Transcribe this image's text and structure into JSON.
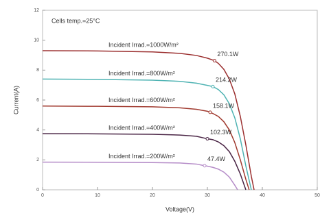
{
  "chart_data": {
    "type": "line",
    "annotation": "Cells temp.=25°C",
    "x_label": "Voltage(V)",
    "y_label": "Current(A)",
    "xlim": [
      0,
      50
    ],
    "ylim": [
      0,
      12
    ],
    "xticks": [
      0,
      10,
      20,
      30,
      40,
      50
    ],
    "yticks": [
      0,
      2,
      4,
      6,
      8,
      10,
      12
    ],
    "series": [
      {
        "name": "Incident Irrad.=1000W/m²",
        "color": "#9b2f2f",
        "x": [
          0,
          10,
          20,
          25,
          28,
          30,
          31.3,
          32,
          33,
          34,
          35,
          36,
          37,
          38,
          38.5
        ],
        "values": [
          9.3,
          9.28,
          9.22,
          9.12,
          8.98,
          8.8,
          8.63,
          8.45,
          8.05,
          7.4,
          6.4,
          4.9,
          3.0,
          0.9,
          0
        ],
        "mpp_x": 31.3,
        "mpp_y": 8.63,
        "power_label": "270.1W"
      },
      {
        "name": "Incident Irrad.=800W/m²",
        "color": "#4fb3b3",
        "x": [
          0,
          10,
          20,
          25,
          28,
          30,
          31,
          32,
          33,
          34,
          35,
          36,
          37,
          38
        ],
        "values": [
          7.4,
          7.38,
          7.33,
          7.25,
          7.13,
          6.98,
          6.9,
          6.7,
          6.35,
          5.75,
          4.8,
          3.4,
          1.6,
          0
        ],
        "mpp_x": 31,
        "mpp_y": 6.9,
        "power_label": "214.2W"
      },
      {
        "name": "Incident Irrad.=600W/m²",
        "color": "#a0392e",
        "x": [
          0,
          10,
          20,
          25,
          28,
          30,
          30.5,
          31,
          32,
          33,
          34,
          35,
          36,
          37,
          37.6
        ],
        "values": [
          5.6,
          5.58,
          5.55,
          5.48,
          5.38,
          5.25,
          5.18,
          5.1,
          4.9,
          4.55,
          4.0,
          3.15,
          2.0,
          0.7,
          0
        ],
        "mpp_x": 30.5,
        "mpp_y": 5.18,
        "power_label": "158.1W"
      },
      {
        "name": "Incident Irrad.=400W/m²",
        "color": "#4a2545",
        "x": [
          0,
          10,
          20,
          25,
          28,
          30,
          31,
          32,
          33,
          34,
          35,
          36,
          37
        ],
        "values": [
          3.75,
          3.74,
          3.71,
          3.66,
          3.58,
          3.41,
          3.35,
          3.2,
          2.95,
          2.55,
          1.9,
          1.05,
          0
        ],
        "mpp_x": 30,
        "mpp_y": 3.41,
        "power_label": "102.3W"
      },
      {
        "name": "Incident Irrad.=200W/m²",
        "color": "#b58cc8",
        "x": [
          0,
          10,
          20,
          25,
          28,
          29.5,
          30,
          31,
          32,
          33,
          34,
          35,
          35.5
        ],
        "values": [
          1.85,
          1.84,
          1.82,
          1.79,
          1.72,
          1.61,
          1.58,
          1.5,
          1.38,
          1.18,
          0.85,
          0.3,
          0
        ],
        "mpp_x": 29.5,
        "mpp_y": 1.61,
        "power_label": "47.4W"
      }
    ]
  }
}
